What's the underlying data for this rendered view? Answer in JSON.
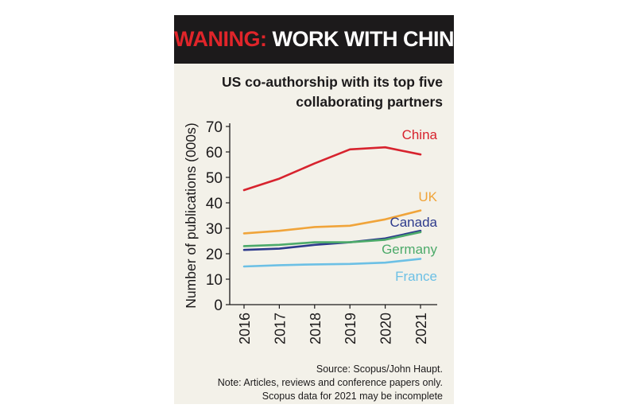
{
  "header": {
    "keyword": "WANING:",
    "rest": " WORK WITH CHINA",
    "keyword_color": "#e0252a",
    "background": "#1c1a1b"
  },
  "chart_data": {
    "type": "line",
    "title_lines": [
      "US co-authorship with its top five",
      "collaborating partners"
    ],
    "xlabel": "",
    "ylabel": "Number of publications (000s)",
    "categories": [
      "2016",
      "2017",
      "2018",
      "2019",
      "2020",
      "2021"
    ],
    "ylim": [
      0,
      70
    ],
    "yticks": [
      0,
      10,
      20,
      30,
      40,
      50,
      60,
      70
    ],
    "grid": false,
    "series": [
      {
        "name": "China",
        "color": "#d7232e",
        "values": [
          45,
          49.5,
          55.5,
          61,
          61.8,
          59
        ]
      },
      {
        "name": "UK",
        "color": "#f0a43a",
        "values": [
          28,
          29,
          30.5,
          31,
          33.5,
          37
        ]
      },
      {
        "name": "Canada",
        "color": "#2d3a8c",
        "values": [
          21.5,
          22,
          23.5,
          24.5,
          26,
          29
        ]
      },
      {
        "name": "Germany",
        "color": "#4caa6a",
        "values": [
          23,
          23.5,
          24.5,
          24.5,
          25.5,
          28.5
        ]
      },
      {
        "name": "France",
        "color": "#6cc0e5",
        "values": [
          15,
          15.5,
          15.8,
          16,
          16.5,
          18
        ]
      }
    ]
  },
  "notes": [
    "Source: Scopus/John Haupt.",
    "Note: Articles, reviews and conference papers only.",
    "Scopus data for 2021 may be incomplete"
  ]
}
